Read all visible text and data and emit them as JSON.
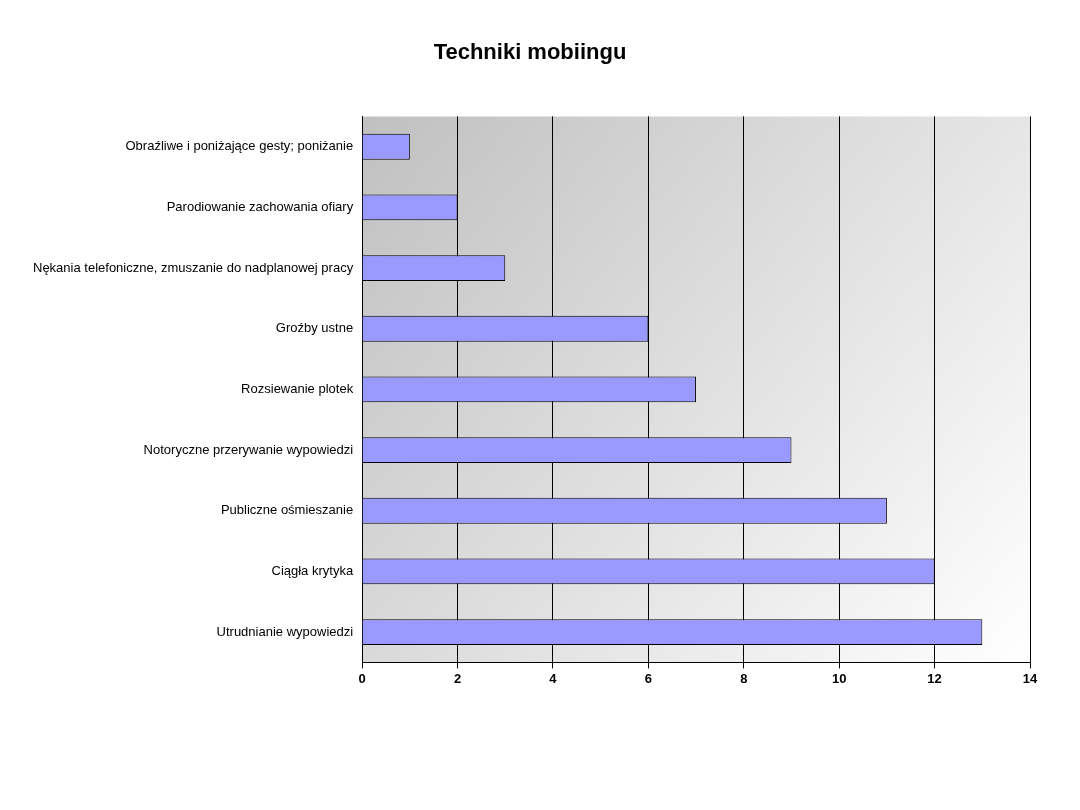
{
  "chart_data": {
    "type": "bar",
    "orientation": "horizontal",
    "title": "Techniki mobiingu",
    "categories": [
      "Obraźliwe i poniżające gesty; poniżanie",
      "Parodiowanie zachowania ofiary",
      "Nękania telefoniczne, zmuszanie do nadplanowej pracy",
      "Groźby ustne",
      "Rozsiewanie plotek",
      "Notoryczne przerywanie wypowiedzi",
      "Publiczne ośmieszanie",
      "Ciągła krytyka",
      "Utrudnianie wypowiedzi"
    ],
    "values": [
      1,
      2,
      3,
      6,
      7,
      9,
      11,
      12,
      13
    ],
    "color": "#9999ff",
    "xlim": [
      0,
      14
    ],
    "xticks": [
      0,
      2,
      4,
      6,
      8,
      10,
      12,
      14
    ],
    "grid": "x",
    "legend": false
  }
}
